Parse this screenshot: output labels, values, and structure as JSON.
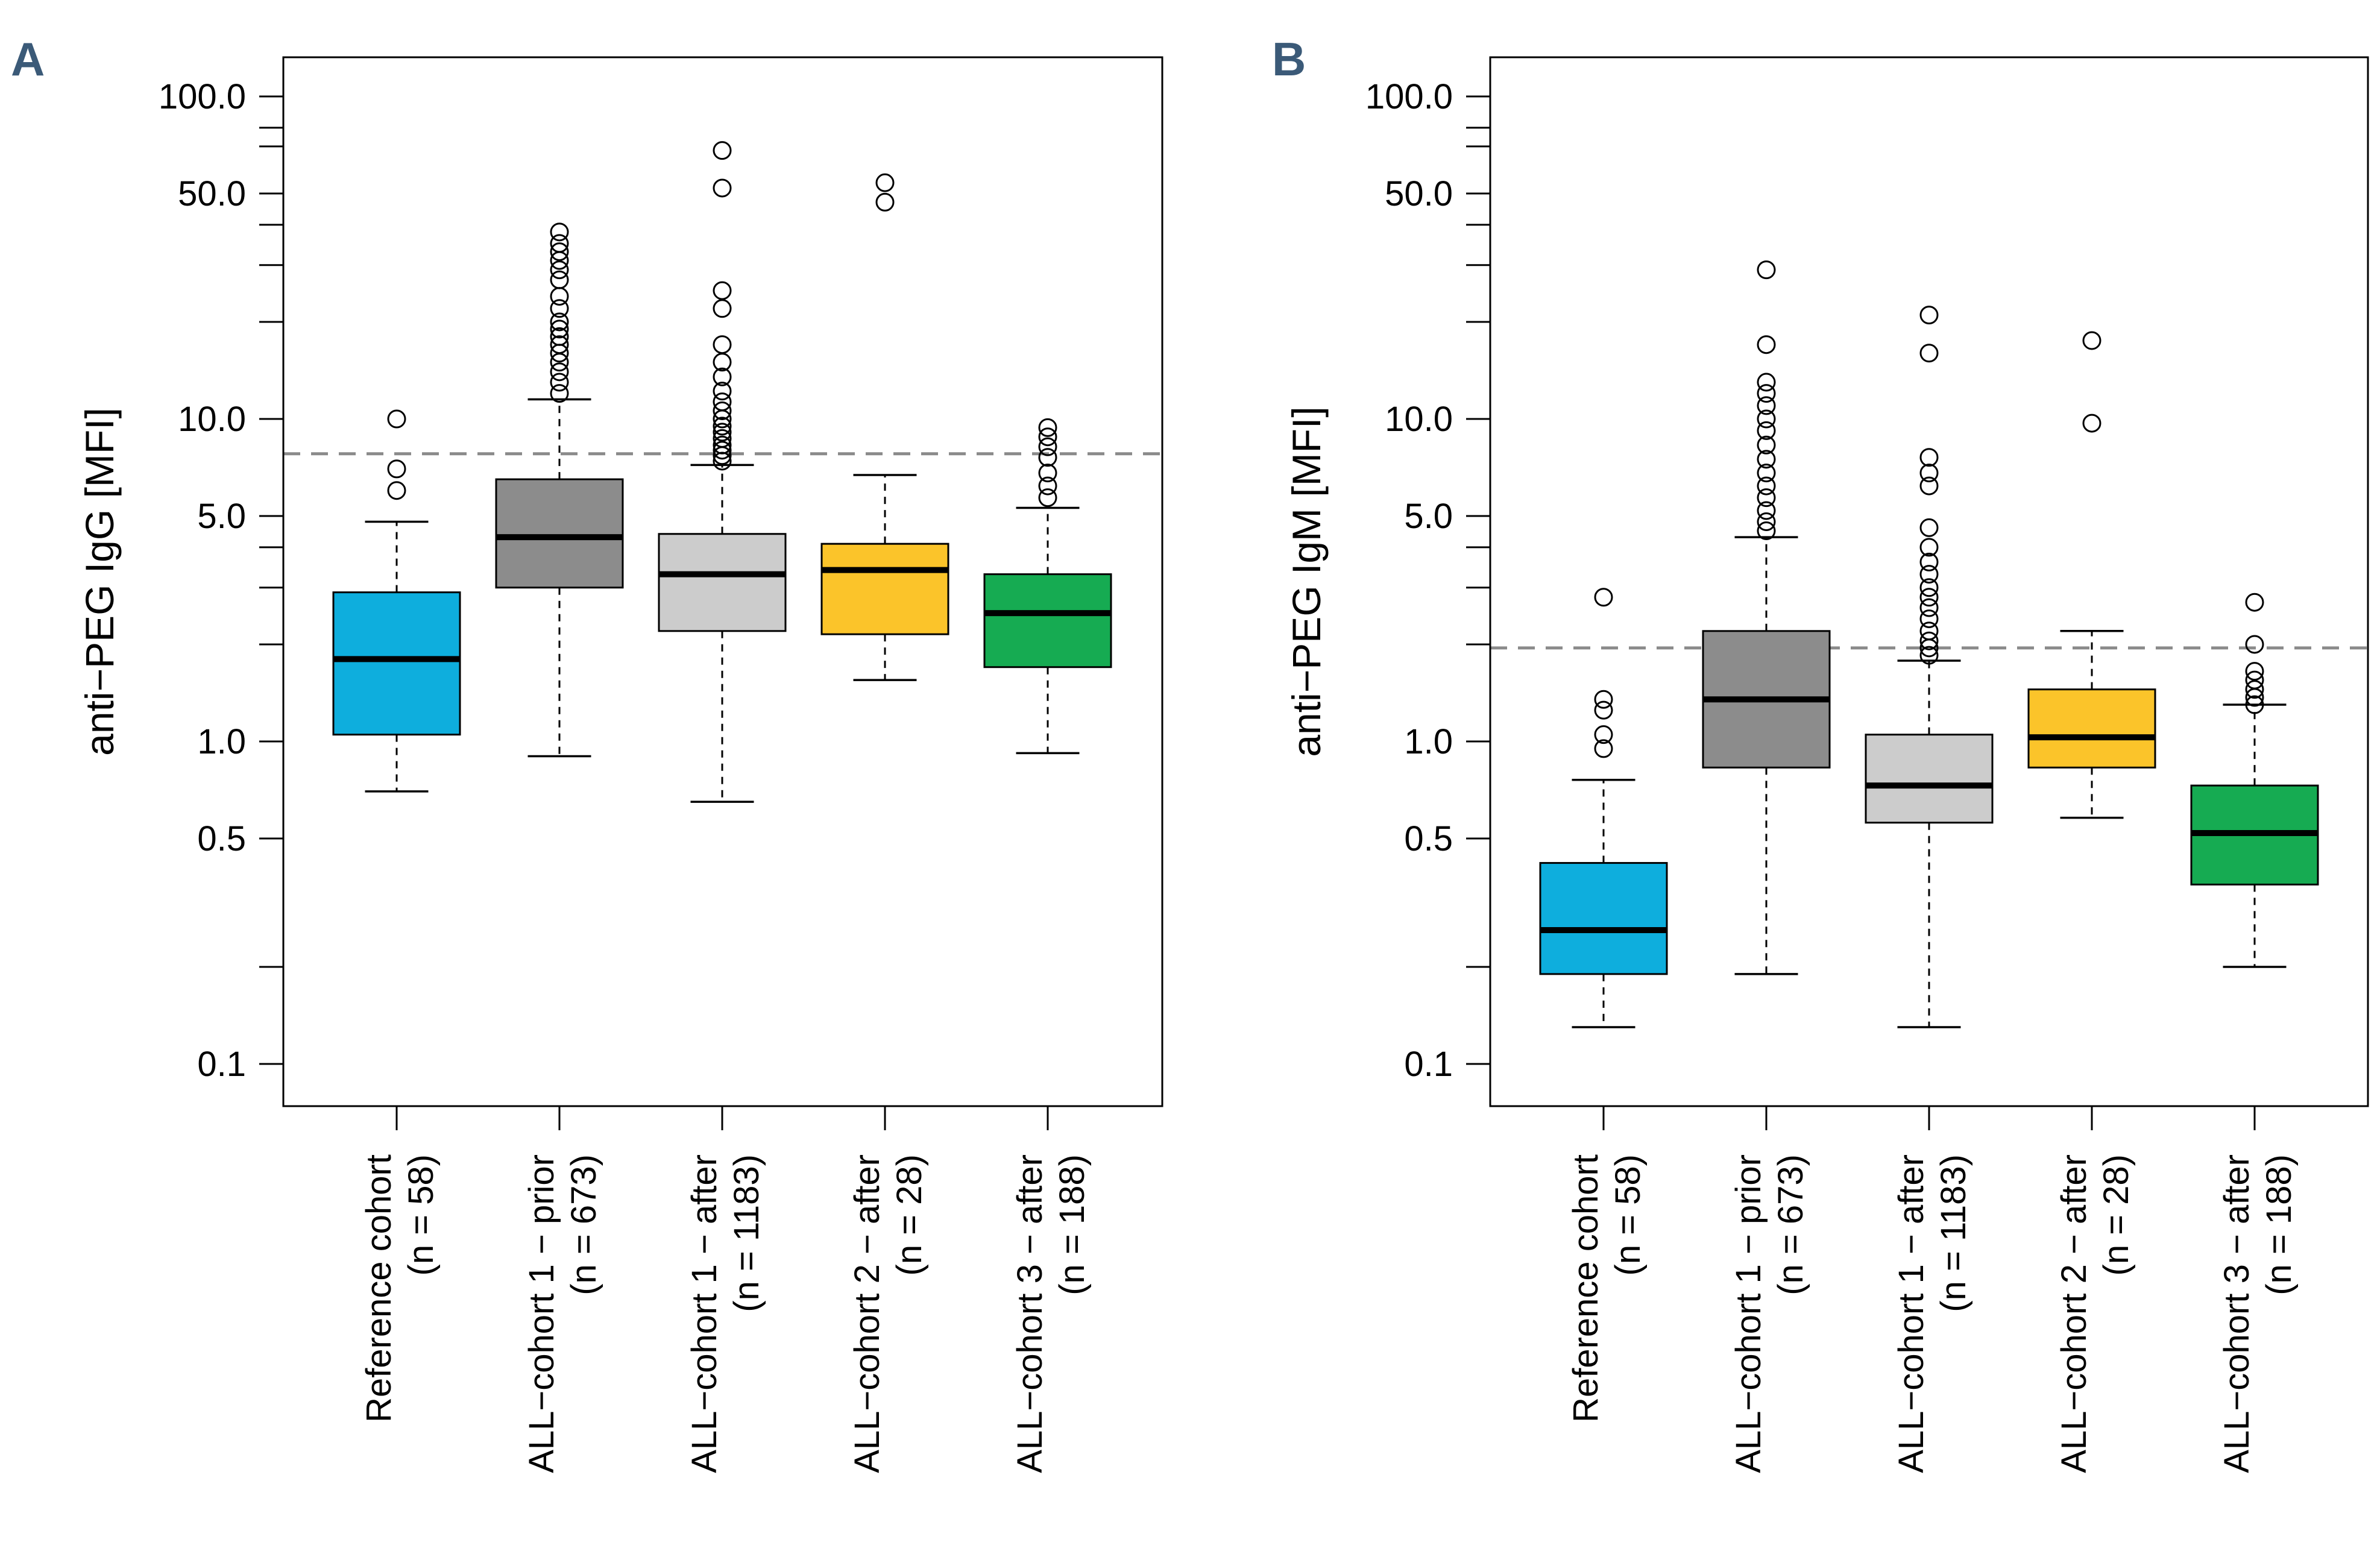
{
  "chart_data": [
    {
      "type": "box",
      "panel_label": "A",
      "ylabel": "anti−PEG IgG [MFI]",
      "yscale": "log",
      "ylim": [
        0.1,
        100
      ],
      "yticks": [
        100,
        50,
        10,
        5,
        1,
        0.5,
        0.1
      ],
      "ytick_labels": [
        "100.0",
        "50.0",
        "10.0",
        "5.0",
        "1.0",
        "0.5",
        "0.1"
      ],
      "threshold": 7.8,
      "categories": [
        {
          "name": "Reference cohort",
          "n": "(n = 58)",
          "color": "#0eaedd",
          "whisker_low": 0.7,
          "q1": 1.05,
          "median": 1.8,
          "q3": 2.9,
          "whisker_high": 4.8,
          "outliers": [
            6.0,
            7.0,
            10.0
          ]
        },
        {
          "name": "ALL−cohort 1 − prior",
          "n": "(n = 673)",
          "color": "#8c8c8c",
          "whisker_low": 0.9,
          "q1": 3.0,
          "median": 4.3,
          "q3": 6.5,
          "whisker_high": 11.5,
          "outliers": [
            12,
            13,
            14,
            15,
            16,
            17,
            18,
            19,
            20,
            22,
            24,
            27,
            29,
            31,
            33,
            35,
            38
          ]
        },
        {
          "name": "ALL−cohort 1 − after",
          "n": "(n = 1183)",
          "color": "#cccccc",
          "whisker_low": 0.65,
          "q1": 2.2,
          "median": 3.3,
          "q3": 4.4,
          "whisker_high": 7.2,
          "outliers": [
            7.4,
            7.7,
            8.0,
            8.3,
            8.7,
            9.1,
            9.5,
            10.0,
            10.6,
            11.3,
            12.2,
            13.5,
            15,
            17,
            22,
            25,
            52,
            68
          ]
        },
        {
          "name": "ALL−cohort 2 − after",
          "n": "(n = 28)",
          "color": "#fbc42a",
          "whisker_low": 1.55,
          "q1": 2.15,
          "median": 3.4,
          "q3": 4.1,
          "whisker_high": 6.7,
          "outliers": [
            47,
            54
          ]
        },
        {
          "name": "ALL−cohort 3 − after",
          "n": "(n = 188)",
          "color": "#16ab52",
          "whisker_low": 0.92,
          "q1": 1.7,
          "median": 2.5,
          "q3": 3.3,
          "whisker_high": 5.3,
          "outliers": [
            5.7,
            6.2,
            6.8,
            7.6,
            8.2,
            8.8,
            9.4
          ]
        }
      ]
    },
    {
      "type": "box",
      "panel_label": "B",
      "ylabel": "anti−PEG IgM [MFI]",
      "yscale": "log",
      "ylim": [
        0.1,
        100
      ],
      "yticks": [
        100,
        50,
        10,
        5,
        1,
        0.5,
        0.1
      ],
      "ytick_labels": [
        "100.0",
        "50.0",
        "10.0",
        "5.0",
        "1.0",
        "0.5",
        "0.1"
      ],
      "threshold": 1.95,
      "categories": [
        {
          "name": "Reference cohort",
          "n": "(n = 58)",
          "color": "#0eaedd",
          "whisker_low": 0.13,
          "q1": 0.19,
          "median": 0.26,
          "q3": 0.42,
          "whisker_high": 0.76,
          "outliers": [
            0.95,
            1.05,
            1.25,
            1.35,
            2.8
          ]
        },
        {
          "name": "ALL−cohort 1 − prior",
          "n": "(n = 673)",
          "color": "#8c8c8c",
          "whisker_low": 0.19,
          "q1": 0.83,
          "median": 1.35,
          "q3": 2.2,
          "whisker_high": 4.3,
          "outliers": [
            4.5,
            4.8,
            5.2,
            5.7,
            6.2,
            6.8,
            7.5,
            8.3,
            9.2,
            10.0,
            11.0,
            12.0,
            13.0,
            17.0,
            29.0
          ]
        },
        {
          "name": "ALL−cohort 1 − after",
          "n": "(n = 1183)",
          "color": "#cccccc",
          "whisker_low": 0.13,
          "q1": 0.56,
          "median": 0.73,
          "q3": 1.05,
          "whisker_high": 1.78,
          "outliers": [
            1.85,
            1.95,
            2.05,
            2.2,
            2.4,
            2.6,
            2.8,
            3.0,
            3.3,
            3.6,
            4.0,
            4.6,
            6.2,
            6.8,
            7.6,
            16.0,
            21.0
          ]
        },
        {
          "name": "ALL−cohort 2 − after",
          "n": "(n = 28)",
          "color": "#fbc42a",
          "whisker_low": 0.58,
          "q1": 0.83,
          "median": 1.03,
          "q3": 1.45,
          "whisker_high": 2.2,
          "outliers": [
            9.7,
            17.5
          ]
        },
        {
          "name": "ALL−cohort 3 − after",
          "n": "(n = 188)",
          "color": "#16ab52",
          "whisker_low": 0.2,
          "q1": 0.36,
          "median": 0.52,
          "q3": 0.73,
          "whisker_high": 1.3,
          "outliers": [
            1.3,
            1.37,
            1.45,
            1.55,
            1.65,
            2.0,
            2.7
          ]
        }
      ]
    }
  ]
}
